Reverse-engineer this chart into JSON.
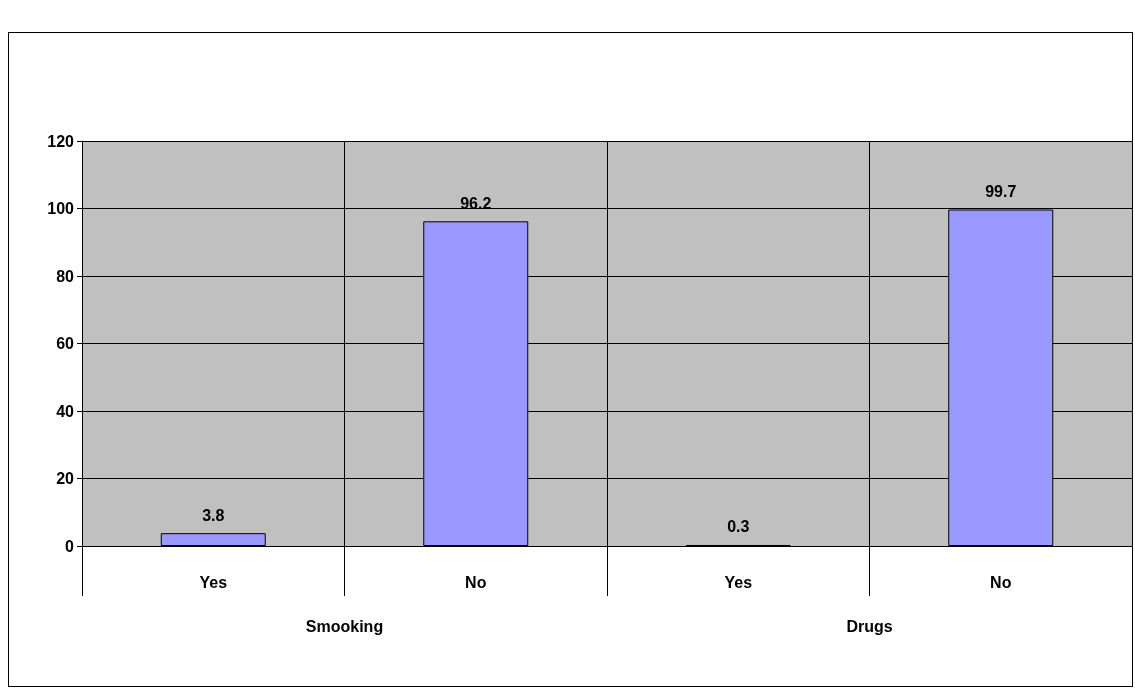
{
  "chart_data": {
    "type": "bar",
    "categories": [
      "Yes",
      "No",
      "Yes",
      "No"
    ],
    "values": [
      3.8,
      96.2,
      0.3,
      99.7
    ],
    "color": "#9999ff",
    "ylim": [
      0,
      120
    ],
    "yticks": [
      0,
      20,
      40,
      60,
      80,
      100,
      120
    ],
    "grid": true,
    "data_labels": true,
    "annotations": [
      "Smooking",
      "Drugs"
    ]
  }
}
